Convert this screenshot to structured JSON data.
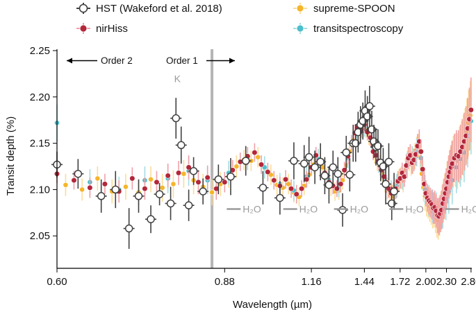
{
  "chart_data": {
    "type": "scatter",
    "title": "",
    "xlabel": "Wavelength (µm)",
    "ylabel": "Transit depth (%)",
    "xlim": [
      0.6,
      2.82
    ],
    "ylim": [
      2.015,
      2.25
    ],
    "x_scale": "reciprocal",
    "xticks": [
      0.6,
      0.88,
      1.16,
      1.44,
      1.72,
      2.0,
      2.3,
      2.8
    ],
    "xtick_labels": [
      "0.60",
      "0.88",
      "1.16",
      "1.44",
      "1.72",
      "2.00",
      "2.30",
      "2.80"
    ],
    "yticks": [
      2.05,
      2.1,
      2.15,
      2.2,
      2.25
    ],
    "ytick_labels": [
      "2.05",
      "2.10",
      "2.15",
      "2.20",
      "2.25"
    ],
    "grid": false,
    "legend": {
      "placement": "top",
      "columns": 2
    },
    "colors": {
      "hst": "#404040",
      "nirhiss": "#b3273a",
      "nirhiss_err": "#f0a0a8",
      "supreme": "#f5b52b",
      "supreme_err": "#fbdc96",
      "transit": "#4cbfcc",
      "transit_err": "#a6dde4",
      "order_divider": "#b5b5b5"
    },
    "order_divider_x": 0.85,
    "annotations": {
      "order2": "Order 2",
      "order1": "Order 1",
      "k_label": "K",
      "k_x": 0.775,
      "h2o_label": "H₂O",
      "h2o_bands": [
        {
          "x": 0.94,
          "y": 2.076
        },
        {
          "x": 1.13,
          "y": 2.076
        },
        {
          "x": 1.38,
          "y": 2.076
        },
        {
          "x": 1.82,
          "y": 2.076
        },
        {
          "x": 2.68,
          "y": 2.076
        }
      ]
    },
    "series": [
      {
        "name": "HST (Wakeford et al. 2018)",
        "key": "hst",
        "x": [
          0.6,
          0.625,
          0.655,
          0.675,
          0.695,
          0.71,
          0.73,
          0.745,
          0.765,
          0.775,
          0.785,
          0.8,
          0.81,
          0.83,
          0.865,
          0.895,
          0.935,
          0.985,
          1.04,
          1.09,
          1.13,
          1.15,
          1.175,
          1.2,
          1.22,
          1.24,
          1.26,
          1.285,
          1.31,
          1.33,
          1.35,
          1.37,
          1.385,
          1.4,
          1.415,
          1.43,
          1.445,
          1.46,
          1.475,
          1.49,
          1.505,
          1.52,
          1.535,
          1.555,
          1.575,
          1.595,
          1.62,
          1.645,
          1.665
        ],
        "y": [
          2.127,
          2.117,
          2.093,
          2.1,
          2.058,
          2.093,
          2.068,
          2.095,
          2.085,
          2.177,
          2.148,
          2.083,
          2.12,
          2.098,
          2.111,
          2.114,
          2.131,
          2.102,
          2.091,
          2.131,
          2.128,
          2.135,
          2.124,
          2.13,
          2.115,
          2.105,
          2.124,
          2.117,
          2.078,
          2.14,
          2.116,
          2.15,
          2.15,
          2.162,
          2.17,
          2.174,
          2.185,
          2.179,
          2.19,
          2.165,
          2.152,
          2.146,
          2.147,
          2.129,
          2.125,
          2.106,
          2.13,
          2.085,
          2.098
        ],
        "err": [
          0.014,
          0.016,
          0.018,
          0.02,
          0.022,
          0.018,
          0.015,
          0.012,
          0.018,
          0.022,
          0.02,
          0.017,
          0.015,
          0.014,
          0.016,
          0.02,
          0.016,
          0.018,
          0.018,
          0.02,
          0.02,
          0.022,
          0.018,
          0.02,
          0.02,
          0.02,
          0.018,
          0.018,
          0.018,
          0.018,
          0.018,
          0.02,
          0.02,
          0.022,
          0.02,
          0.02,
          0.022,
          0.022,
          0.022,
          0.02,
          0.018,
          0.02,
          0.018,
          0.02,
          0.02,
          0.022,
          0.02,
          0.018,
          0.02
        ]
      },
      {
        "name": "nirHiss",
        "key": "nirhiss",
        "x": [
          0.6,
          0.62,
          0.64,
          0.66,
          0.68,
          0.7,
          0.72,
          0.74,
          0.76,
          0.78,
          0.8,
          0.82,
          0.84,
          0.86,
          0.88,
          0.9,
          0.92,
          0.94,
          0.96,
          0.98,
          1.0,
          1.02,
          1.04,
          1.06,
          1.08,
          1.1,
          1.12,
          1.14,
          1.16,
          1.18,
          1.2,
          1.22,
          1.24,
          1.26,
          1.28,
          1.3,
          1.32,
          1.34,
          1.36,
          1.38,
          1.4,
          1.42,
          1.44,
          1.46,
          1.48,
          1.5,
          1.52,
          1.54,
          1.56,
          1.58,
          1.6,
          1.62,
          1.64,
          1.66,
          1.68,
          1.7,
          1.72,
          1.74,
          1.76,
          1.78,
          1.8,
          1.82,
          1.84,
          1.86,
          1.88,
          1.9,
          1.92,
          1.94,
          1.96,
          1.98,
          2.0,
          2.02,
          2.04,
          2.06,
          2.08,
          2.1,
          2.12,
          2.14,
          2.16,
          2.18,
          2.2,
          2.22,
          2.24,
          2.26,
          2.28,
          2.3,
          2.32,
          2.34,
          2.36,
          2.38,
          2.4,
          2.44,
          2.48,
          2.52,
          2.56,
          2.6,
          2.64,
          2.68,
          2.72,
          2.76,
          2.8
        ],
        "y": [
          2.117,
          2.11,
          2.102,
          2.106,
          2.098,
          2.112,
          2.101,
          2.108,
          2.115,
          2.118,
          2.124,
          2.108,
          2.113,
          2.101,
          2.108,
          2.121,
          2.13,
          2.136,
          2.14,
          2.127,
          2.119,
          2.11,
          2.104,
          2.111,
          2.101,
          2.095,
          2.101,
          2.111,
          2.124,
          2.137,
          2.131,
          2.118,
          2.108,
          2.104,
          2.101,
          2.106,
          2.121,
          2.136,
          2.15,
          2.161,
          2.167,
          2.165,
          2.17,
          2.162,
          2.156,
          2.141,
          2.137,
          2.131,
          2.121,
          2.114,
          2.106,
          2.101,
          2.096,
          2.098,
          2.101,
          2.109,
          2.112,
          2.118,
          2.114,
          2.126,
          2.134,
          2.137,
          2.129,
          2.132,
          2.138,
          2.147,
          2.152,
          2.141,
          2.122,
          2.106,
          2.096,
          2.091,
          2.088,
          2.086,
          2.084,
          2.08,
          2.081,
          2.077,
          2.072,
          2.071,
          2.074,
          2.078,
          2.085,
          2.09,
          2.096,
          2.101,
          2.108,
          2.114,
          2.119,
          2.124,
          2.128,
          2.134,
          2.137,
          2.136,
          2.141,
          2.146,
          2.152,
          2.158,
          2.166,
          2.176,
          2.186
        ],
        "err": [
          0.01,
          0.01,
          0.011,
          0.011,
          0.012,
          0.012,
          0.012,
          0.012,
          0.013,
          0.013,
          0.013,
          0.013,
          0.013,
          0.012,
          0.011,
          0.011,
          0.01,
          0.01,
          0.01,
          0.01,
          0.01,
          0.01,
          0.01,
          0.01,
          0.01,
          0.01,
          0.009,
          0.009,
          0.009,
          0.009,
          0.009,
          0.009,
          0.009,
          0.009,
          0.009,
          0.009,
          0.009,
          0.009,
          0.009,
          0.009,
          0.009,
          0.009,
          0.009,
          0.009,
          0.009,
          0.009,
          0.009,
          0.01,
          0.01,
          0.01,
          0.01,
          0.01,
          0.01,
          0.01,
          0.011,
          0.011,
          0.011,
          0.011,
          0.011,
          0.012,
          0.012,
          0.012,
          0.012,
          0.012,
          0.012,
          0.013,
          0.013,
          0.013,
          0.013,
          0.014,
          0.014,
          0.015,
          0.015,
          0.016,
          0.016,
          0.017,
          0.018,
          0.018,
          0.019,
          0.02,
          0.02,
          0.021,
          0.021,
          0.022,
          0.022,
          0.022,
          0.023,
          0.023,
          0.024,
          0.024,
          0.025,
          0.026,
          0.027,
          0.028,
          0.029,
          0.03,
          0.031,
          0.032,
          0.033,
          0.034,
          0.035
        ]
      },
      {
        "name": "supreme-SPOON",
        "key": "supreme",
        "x": [
          0.61,
          0.63,
          0.65,
          0.67,
          0.69,
          0.71,
          0.73,
          0.75,
          0.77,
          0.79,
          0.81,
          0.83,
          0.85,
          0.87,
          0.89,
          0.91,
          0.93,
          0.95,
          0.97,
          0.99,
          1.01,
          1.03,
          1.05,
          1.07,
          1.09,
          1.11,
          1.13,
          1.15,
          1.17,
          1.19,
          1.21,
          1.23,
          1.25,
          1.27,
          1.29,
          1.31,
          1.33,
          1.35,
          1.37,
          1.39,
          1.41,
          1.43,
          1.45,
          1.47,
          1.49,
          1.51,
          1.53,
          1.55,
          1.57,
          1.59,
          1.61,
          1.63,
          1.65,
          1.67,
          1.69,
          1.71,
          1.73,
          1.75,
          1.77,
          1.79,
          1.81,
          1.83,
          1.85,
          1.87,
          1.89,
          1.91,
          1.93,
          1.95,
          1.97,
          1.99,
          2.01,
          2.03,
          2.05,
          2.07,
          2.09,
          2.11,
          2.13,
          2.15,
          2.17,
          2.19,
          2.21,
          2.23,
          2.25,
          2.27,
          2.29,
          2.31,
          2.33,
          2.35,
          2.37,
          2.39,
          2.42,
          2.46,
          2.5,
          2.54,
          2.58,
          2.62,
          2.66,
          2.7,
          2.74,
          2.78
        ],
        "y": [
          2.105,
          2.1,
          2.112,
          2.098,
          2.103,
          2.097,
          2.111,
          2.102,
          2.106,
          2.117,
          2.11,
          2.103,
          2.097,
          2.106,
          2.114,
          2.125,
          2.132,
          2.131,
          2.135,
          2.123,
          2.116,
          2.105,
          2.102,
          2.106,
          2.097,
          2.092,
          2.104,
          2.116,
          2.127,
          2.133,
          2.124,
          2.113,
          2.103,
          2.098,
          2.099,
          2.11,
          2.126,
          2.141,
          2.153,
          2.16,
          2.163,
          2.167,
          2.166,
          2.158,
          2.15,
          2.138,
          2.131,
          2.126,
          2.118,
          2.108,
          2.1,
          2.094,
          2.093,
          2.096,
          2.104,
          2.11,
          2.113,
          2.11,
          2.121,
          2.129,
          2.133,
          2.128,
          2.131,
          2.136,
          2.143,
          2.146,
          2.135,
          2.117,
          2.102,
          2.093,
          2.087,
          2.086,
          2.082,
          2.08,
          2.076,
          2.078,
          2.073,
          2.068,
          2.067,
          2.072,
          2.076,
          2.082,
          2.088,
          2.093,
          2.099,
          2.105,
          2.111,
          2.116,
          2.12,
          2.125,
          2.13,
          2.132,
          2.131,
          2.137,
          2.142,
          2.148,
          2.154,
          2.163,
          2.172,
          2.18
        ],
        "err": [
          0.012,
          0.012,
          0.013,
          0.013,
          0.014,
          0.014,
          0.014,
          0.015,
          0.015,
          0.015,
          0.015,
          0.014,
          0.014,
          0.013,
          0.012,
          0.012,
          0.011,
          0.011,
          0.011,
          0.011,
          0.011,
          0.011,
          0.011,
          0.011,
          0.011,
          0.01,
          0.01,
          0.01,
          0.01,
          0.01,
          0.01,
          0.01,
          0.01,
          0.01,
          0.01,
          0.01,
          0.01,
          0.01,
          0.01,
          0.01,
          0.01,
          0.01,
          0.01,
          0.01,
          0.01,
          0.01,
          0.011,
          0.011,
          0.011,
          0.011,
          0.011,
          0.011,
          0.012,
          0.012,
          0.012,
          0.012,
          0.012,
          0.013,
          0.013,
          0.013,
          0.013,
          0.013,
          0.014,
          0.014,
          0.014,
          0.014,
          0.015,
          0.015,
          0.015,
          0.016,
          0.016,
          0.017,
          0.017,
          0.018,
          0.018,
          0.019,
          0.02,
          0.02,
          0.021,
          0.022,
          0.022,
          0.023,
          0.023,
          0.024,
          0.024,
          0.025,
          0.025,
          0.026,
          0.026,
          0.027,
          0.028,
          0.029,
          0.03,
          0.031,
          0.032,
          0.033,
          0.034,
          0.035,
          0.036,
          0.037
        ]
      },
      {
        "name": "transitspectroscopy",
        "key": "transit",
        "x": [
          0.6,
          0.64,
          0.68,
          0.72,
          0.76,
          0.8,
          0.84,
          0.89,
          0.94,
          0.99,
          1.04,
          1.09,
          1.14,
          1.19,
          1.24,
          1.29,
          1.34,
          1.39,
          1.44,
          1.49,
          1.54,
          1.59,
          1.64,
          1.69,
          1.74,
          1.79,
          1.84,
          1.89,
          1.94,
          1.99,
          2.04,
          2.09,
          2.14,
          2.19,
          2.24,
          2.29,
          2.34,
          2.4,
          2.48,
          2.56,
          2.64,
          2.72,
          2.8
        ],
        "y": [
          2.172,
          2.108,
          2.1,
          2.11,
          2.112,
          2.12,
          2.11,
          2.118,
          2.133,
          2.124,
          2.106,
          2.099,
          2.114,
          2.133,
          2.11,
          2.103,
          2.134,
          2.16,
          2.168,
          2.152,
          2.13,
          2.112,
          2.098,
          2.104,
          2.113,
          2.126,
          2.133,
          2.14,
          2.134,
          2.1,
          2.088,
          2.082,
          2.078,
          2.072,
          2.08,
          2.09,
          2.098,
          2.11,
          2.124,
          2.133,
          2.14,
          2.158,
          2.174
        ],
        "err": [
          0.02,
          0.014,
          0.014,
          0.015,
          0.016,
          0.016,
          0.015,
          0.013,
          0.012,
          0.012,
          0.012,
          0.011,
          0.011,
          0.011,
          0.011,
          0.011,
          0.011,
          0.011,
          0.011,
          0.011,
          0.012,
          0.012,
          0.012,
          0.013,
          0.013,
          0.014,
          0.014,
          0.015,
          0.015,
          0.016,
          0.017,
          0.018,
          0.019,
          0.02,
          0.022,
          0.023,
          0.024,
          0.026,
          0.028,
          0.03,
          0.032,
          0.034,
          0.036
        ]
      }
    ]
  }
}
